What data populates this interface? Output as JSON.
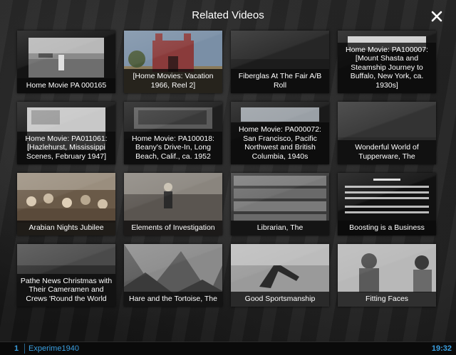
{
  "header": {
    "title": "Related Videos"
  },
  "close_icon": "close-icon",
  "videos": [
    {
      "title": "Home Movie PA 000165"
    },
    {
      "title": "[Home Movies: Vacation 1966, Reel 2]"
    },
    {
      "title": "Fiberglas At The Fair A/B Roll"
    },
    {
      "title": "Home Movie: PA100007: [Mount Shasta and Steamship Journey to Buffalo, New York, ca. 1930s]"
    },
    {
      "title": "Home Movie: PA011061: [Hazlehurst, Mississippi Scenes, February 1947]"
    },
    {
      "title": "Home Movie: PA100018: Beany's Drive-In, Long Beach, Calif., ca. 1952"
    },
    {
      "title": "Home Movie: PA000072: San Francisco, Pacific Northwest and British Columbia, 1940s"
    },
    {
      "title": "Wonderful World of Tupperware, The"
    },
    {
      "title": "Arabian Nights Jubilee"
    },
    {
      "title": "Elements of Investigation"
    },
    {
      "title": "Librarian, The"
    },
    {
      "title": "Boosting is a Business"
    },
    {
      "title": "Pathe News Christmas with Their Cameramen and Crews 'Round the World"
    },
    {
      "title": "Hare and the Tortoise, The"
    },
    {
      "title": "Good Sportsmanship"
    },
    {
      "title": "Fitting Faces"
    }
  ],
  "statusbar": {
    "index": "1",
    "name": "Experime1940",
    "time": "19:32"
  },
  "colors": {
    "accent": "#3a9fe0",
    "caption_bg": "#0a0a0a"
  }
}
